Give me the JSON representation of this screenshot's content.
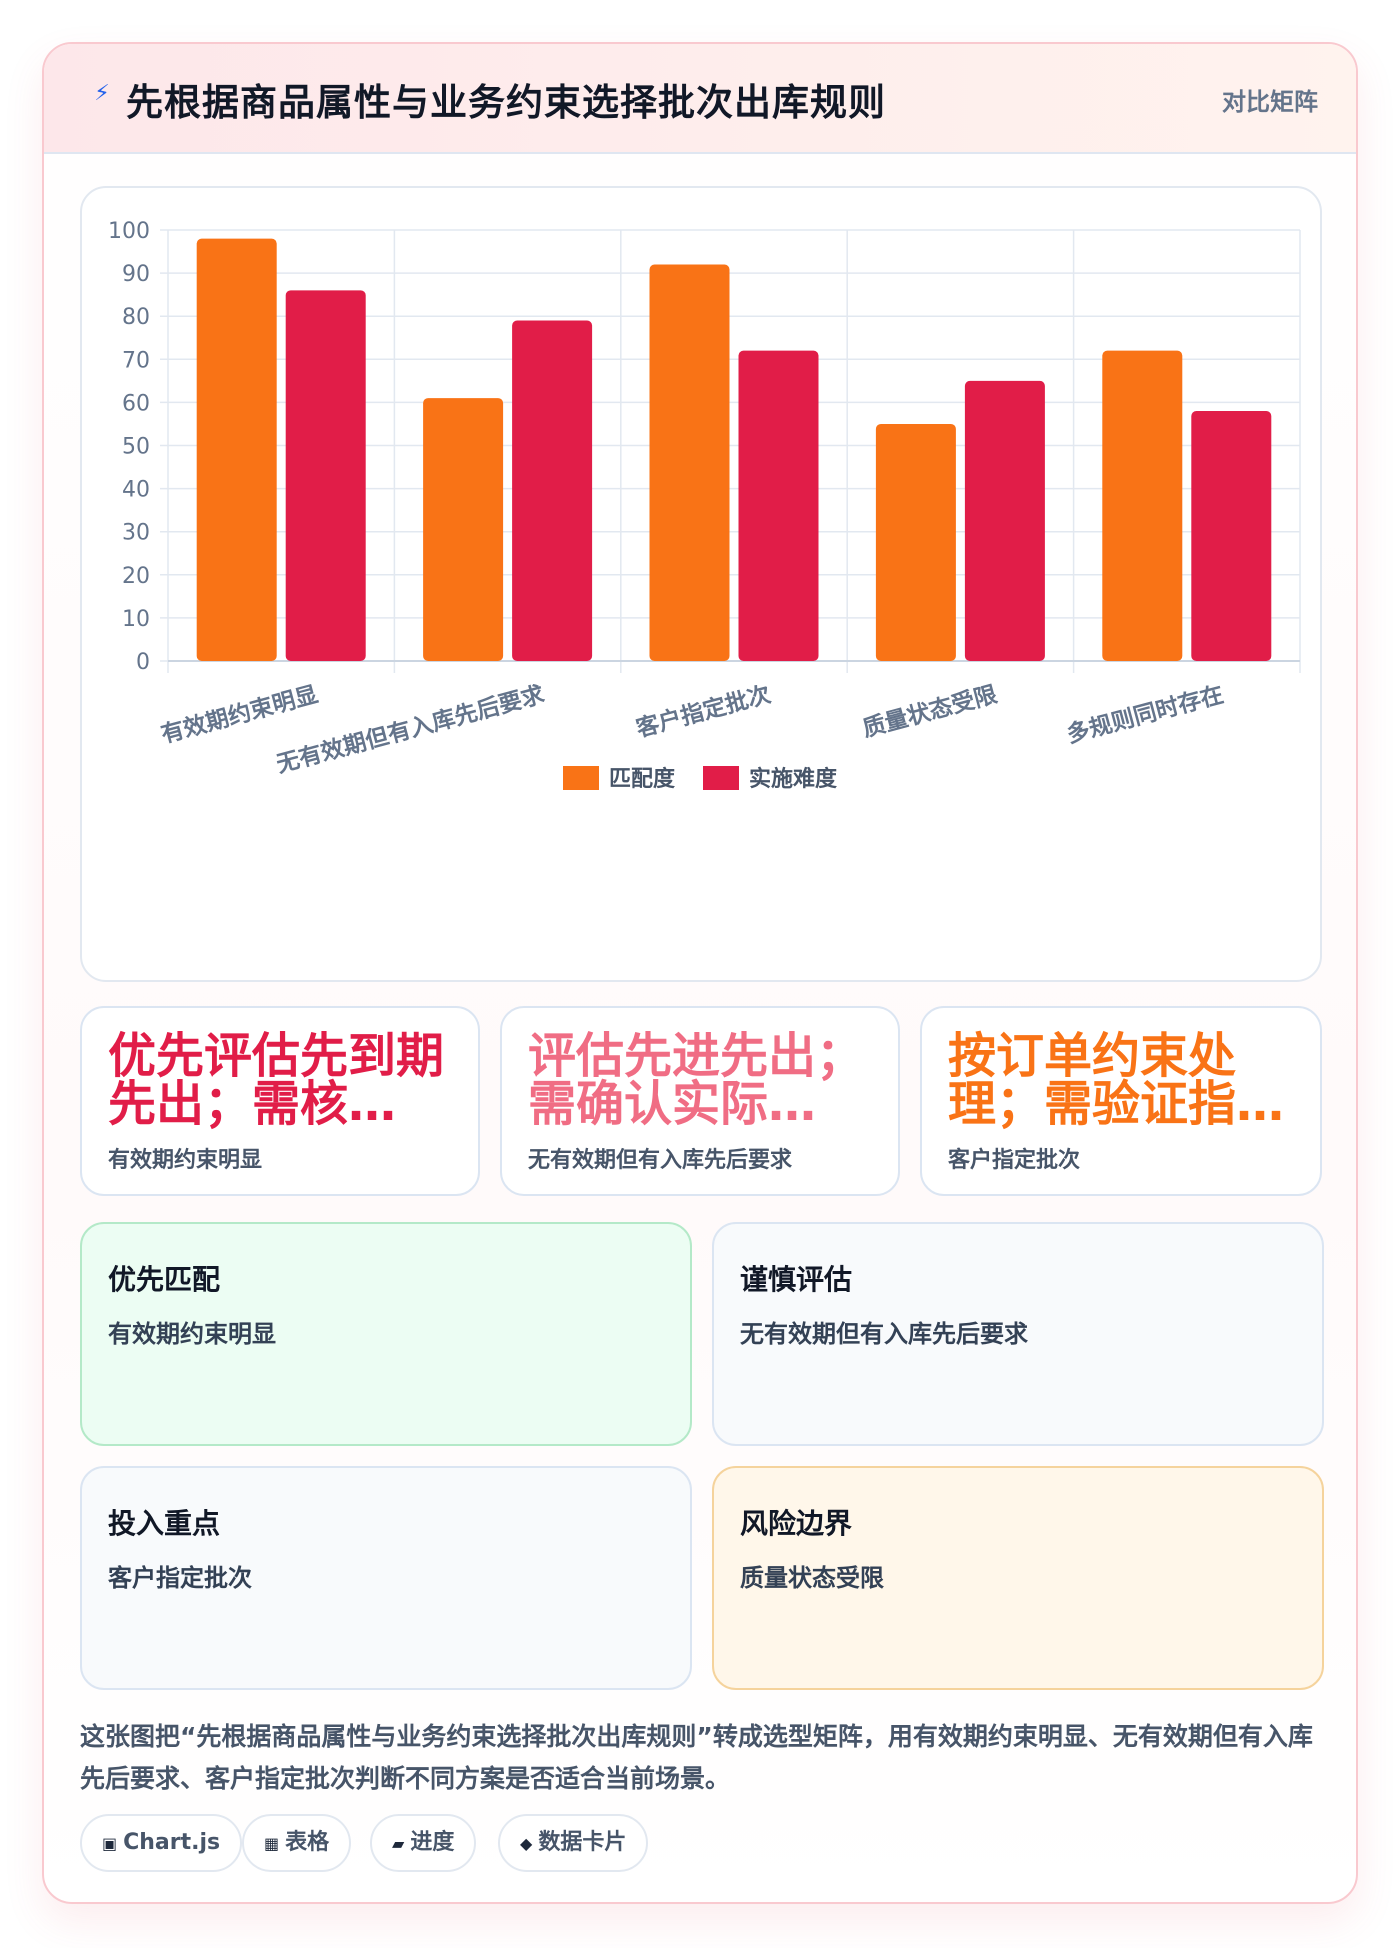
{
  "header": {
    "icon": "lightning-icon",
    "title": "先根据商品属性与业务约束选择批次出库规则",
    "tag": "对比矩阵"
  },
  "chart_data": {
    "type": "bar",
    "categories": [
      "有效期约束明显",
      "无有效期但有入库先后要求",
      "客户指定批次",
      "质量状态受限",
      "多规则同时存在"
    ],
    "series": [
      {
        "name": "匹配度",
        "values": [
          98,
          61,
          92,
          55,
          72
        ],
        "color": "#f97316"
      },
      {
        "name": "实施难度",
        "values": [
          86,
          79,
          72,
          65,
          58
        ],
        "color": "#e11d48"
      }
    ],
    "ylim": [
      0,
      100
    ],
    "yticks": [
      0,
      10,
      20,
      30,
      40,
      50,
      60,
      70,
      80,
      90,
      100
    ],
    "grid": true,
    "legend": "bottom"
  },
  "metrics": [
    {
      "text": "优先评估先到期先出；需核…",
      "label": "有效期约束明显",
      "color": "#e11d48"
    },
    {
      "text": "评估先进先出；需确认实际…",
      "label": "无有效期但有入库先后要求",
      "color": "#f06d84"
    },
    {
      "text": "按订单约束处理；需验证指…",
      "label": "客户指定批次",
      "color": "#f97316"
    }
  ],
  "boxes": [
    {
      "title": "优先匹配",
      "text": "有效期约束明显",
      "style": "green"
    },
    {
      "title": "谨慎评估",
      "text": "无有效期但有入库先后要求",
      "style": "plain"
    },
    {
      "title": "投入重点",
      "text": "客户指定批次",
      "style": "plain"
    },
    {
      "title": "风险边界",
      "text": "质量状态受限",
      "style": "amber"
    }
  ],
  "description": "这张图把“先根据商品属性与业务约束选择批次出库规则”转成选型矩阵，用有效期约束明显、无有效期但有入库先后要求、客户指定批次判断不同方案是否适合当前场景。",
  "chips": [
    {
      "icon": "▣",
      "label": "Chart.js"
    },
    {
      "icon": "▦",
      "label": "表格"
    },
    {
      "icon": "▰",
      "label": "进度"
    },
    {
      "icon": "◆",
      "label": "数据卡片"
    }
  ]
}
